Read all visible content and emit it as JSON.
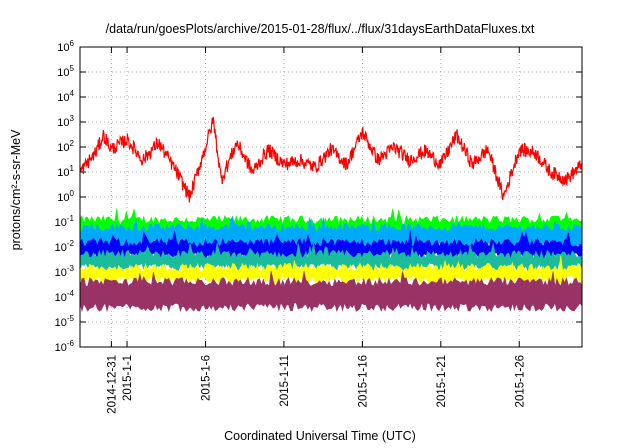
{
  "chart_data": {
    "type": "line",
    "title": "/data/run/goesPlots/archive/2015-01-28/flux/../flux/31daysEarthDataFluxes.txt",
    "xlabel": "Coordinated Universal Time (UTC)",
    "ylabel": "protons/cm²-s-sr-MeV",
    "yscale": "log",
    "ylim": [
      1e-06,
      1000000.0
    ],
    "xlim": [
      "2014-12-29",
      "2015-01-30"
    ],
    "grid": true,
    "y_ticks": [
      {
        "base": "10",
        "exp": "-6"
      },
      {
        "base": "10",
        "exp": "-5"
      },
      {
        "base": "10",
        "exp": "-4"
      },
      {
        "base": "10",
        "exp": "-3"
      },
      {
        "base": "10",
        "exp": "-2"
      },
      {
        "base": "10",
        "exp": "-1"
      },
      {
        "base": "10",
        "exp": "0"
      },
      {
        "base": "10",
        "exp": "1"
      },
      {
        "base": "10",
        "exp": "2"
      },
      {
        "base": "10",
        "exp": "3"
      },
      {
        "base": "10",
        "exp": "4"
      },
      {
        "base": "10",
        "exp": "5"
      },
      {
        "base": "10",
        "exp": "6"
      }
    ],
    "x_ticks": [
      {
        "date": "2014-12-31",
        "label": "2014-12-31"
      },
      {
        "date": "2015-01-01",
        "label": "2015-1-1"
      },
      {
        "date": "2015-01-06",
        "label": "2015-1-6"
      },
      {
        "date": "2015-01-11",
        "label": "2015-1-11"
      },
      {
        "date": "2015-01-16",
        "label": "2015-1-16"
      },
      {
        "date": "2015-01-21",
        "label": "2015-1-21"
      },
      {
        "date": "2015-01-26",
        "label": "2015-1-26"
      }
    ],
    "series": [
      {
        "color": "#ff0000",
        "values": [
          [
            "2014-12-29",
            10
          ],
          [
            "2014-12-30",
            60
          ],
          [
            "2014-12-30T12:00",
            300
          ],
          [
            "2014-12-31",
            80
          ],
          [
            "2015-01-01",
            200
          ],
          [
            "2015-01-02",
            30
          ],
          [
            "2015-01-03",
            150
          ],
          [
            "2015-01-04",
            15
          ],
          [
            "2015-01-05",
            1
          ],
          [
            "2015-01-06",
            100
          ],
          [
            "2015-01-06T12:00",
            1200
          ],
          [
            "2015-01-07",
            5
          ],
          [
            "2015-01-08",
            150
          ],
          [
            "2015-01-09",
            10
          ],
          [
            "2015-01-10",
            80
          ],
          [
            "2015-01-11",
            20
          ],
          [
            "2015-01-12",
            30
          ],
          [
            "2015-01-13",
            15
          ],
          [
            "2015-01-14",
            80
          ],
          [
            "2015-01-15",
            20
          ],
          [
            "2015-01-16",
            400
          ],
          [
            "2015-01-17",
            30
          ],
          [
            "2015-01-18",
            100
          ],
          [
            "2015-01-19",
            30
          ],
          [
            "2015-01-20",
            70
          ],
          [
            "2015-01-21",
            20
          ],
          [
            "2015-01-22",
            300
          ],
          [
            "2015-01-23",
            20
          ],
          [
            "2015-01-24",
            80
          ],
          [
            "2015-01-25",
            1
          ],
          [
            "2015-01-26",
            80
          ],
          [
            "2015-01-27",
            60
          ],
          [
            "2015-01-28",
            10
          ],
          [
            "2015-01-29",
            5
          ],
          [
            "2015-01-30",
            20
          ]
        ]
      },
      {
        "color": "#00ff00",
        "band": [
          0.03,
          0.12
        ]
      },
      {
        "color": "#00aaff",
        "band": [
          0.01,
          0.06
        ]
      },
      {
        "color": "#0000ff",
        "band": [
          0.004,
          0.015
        ]
      },
      {
        "color": "#1abc9c",
        "band": [
          0.0015,
          0.005
        ]
      },
      {
        "color": "#ffff00",
        "band": [
          0.0005,
          0.0015
        ]
      },
      {
        "color": "#993366",
        "band": [
          4e-05,
          0.0004
        ]
      }
    ]
  }
}
